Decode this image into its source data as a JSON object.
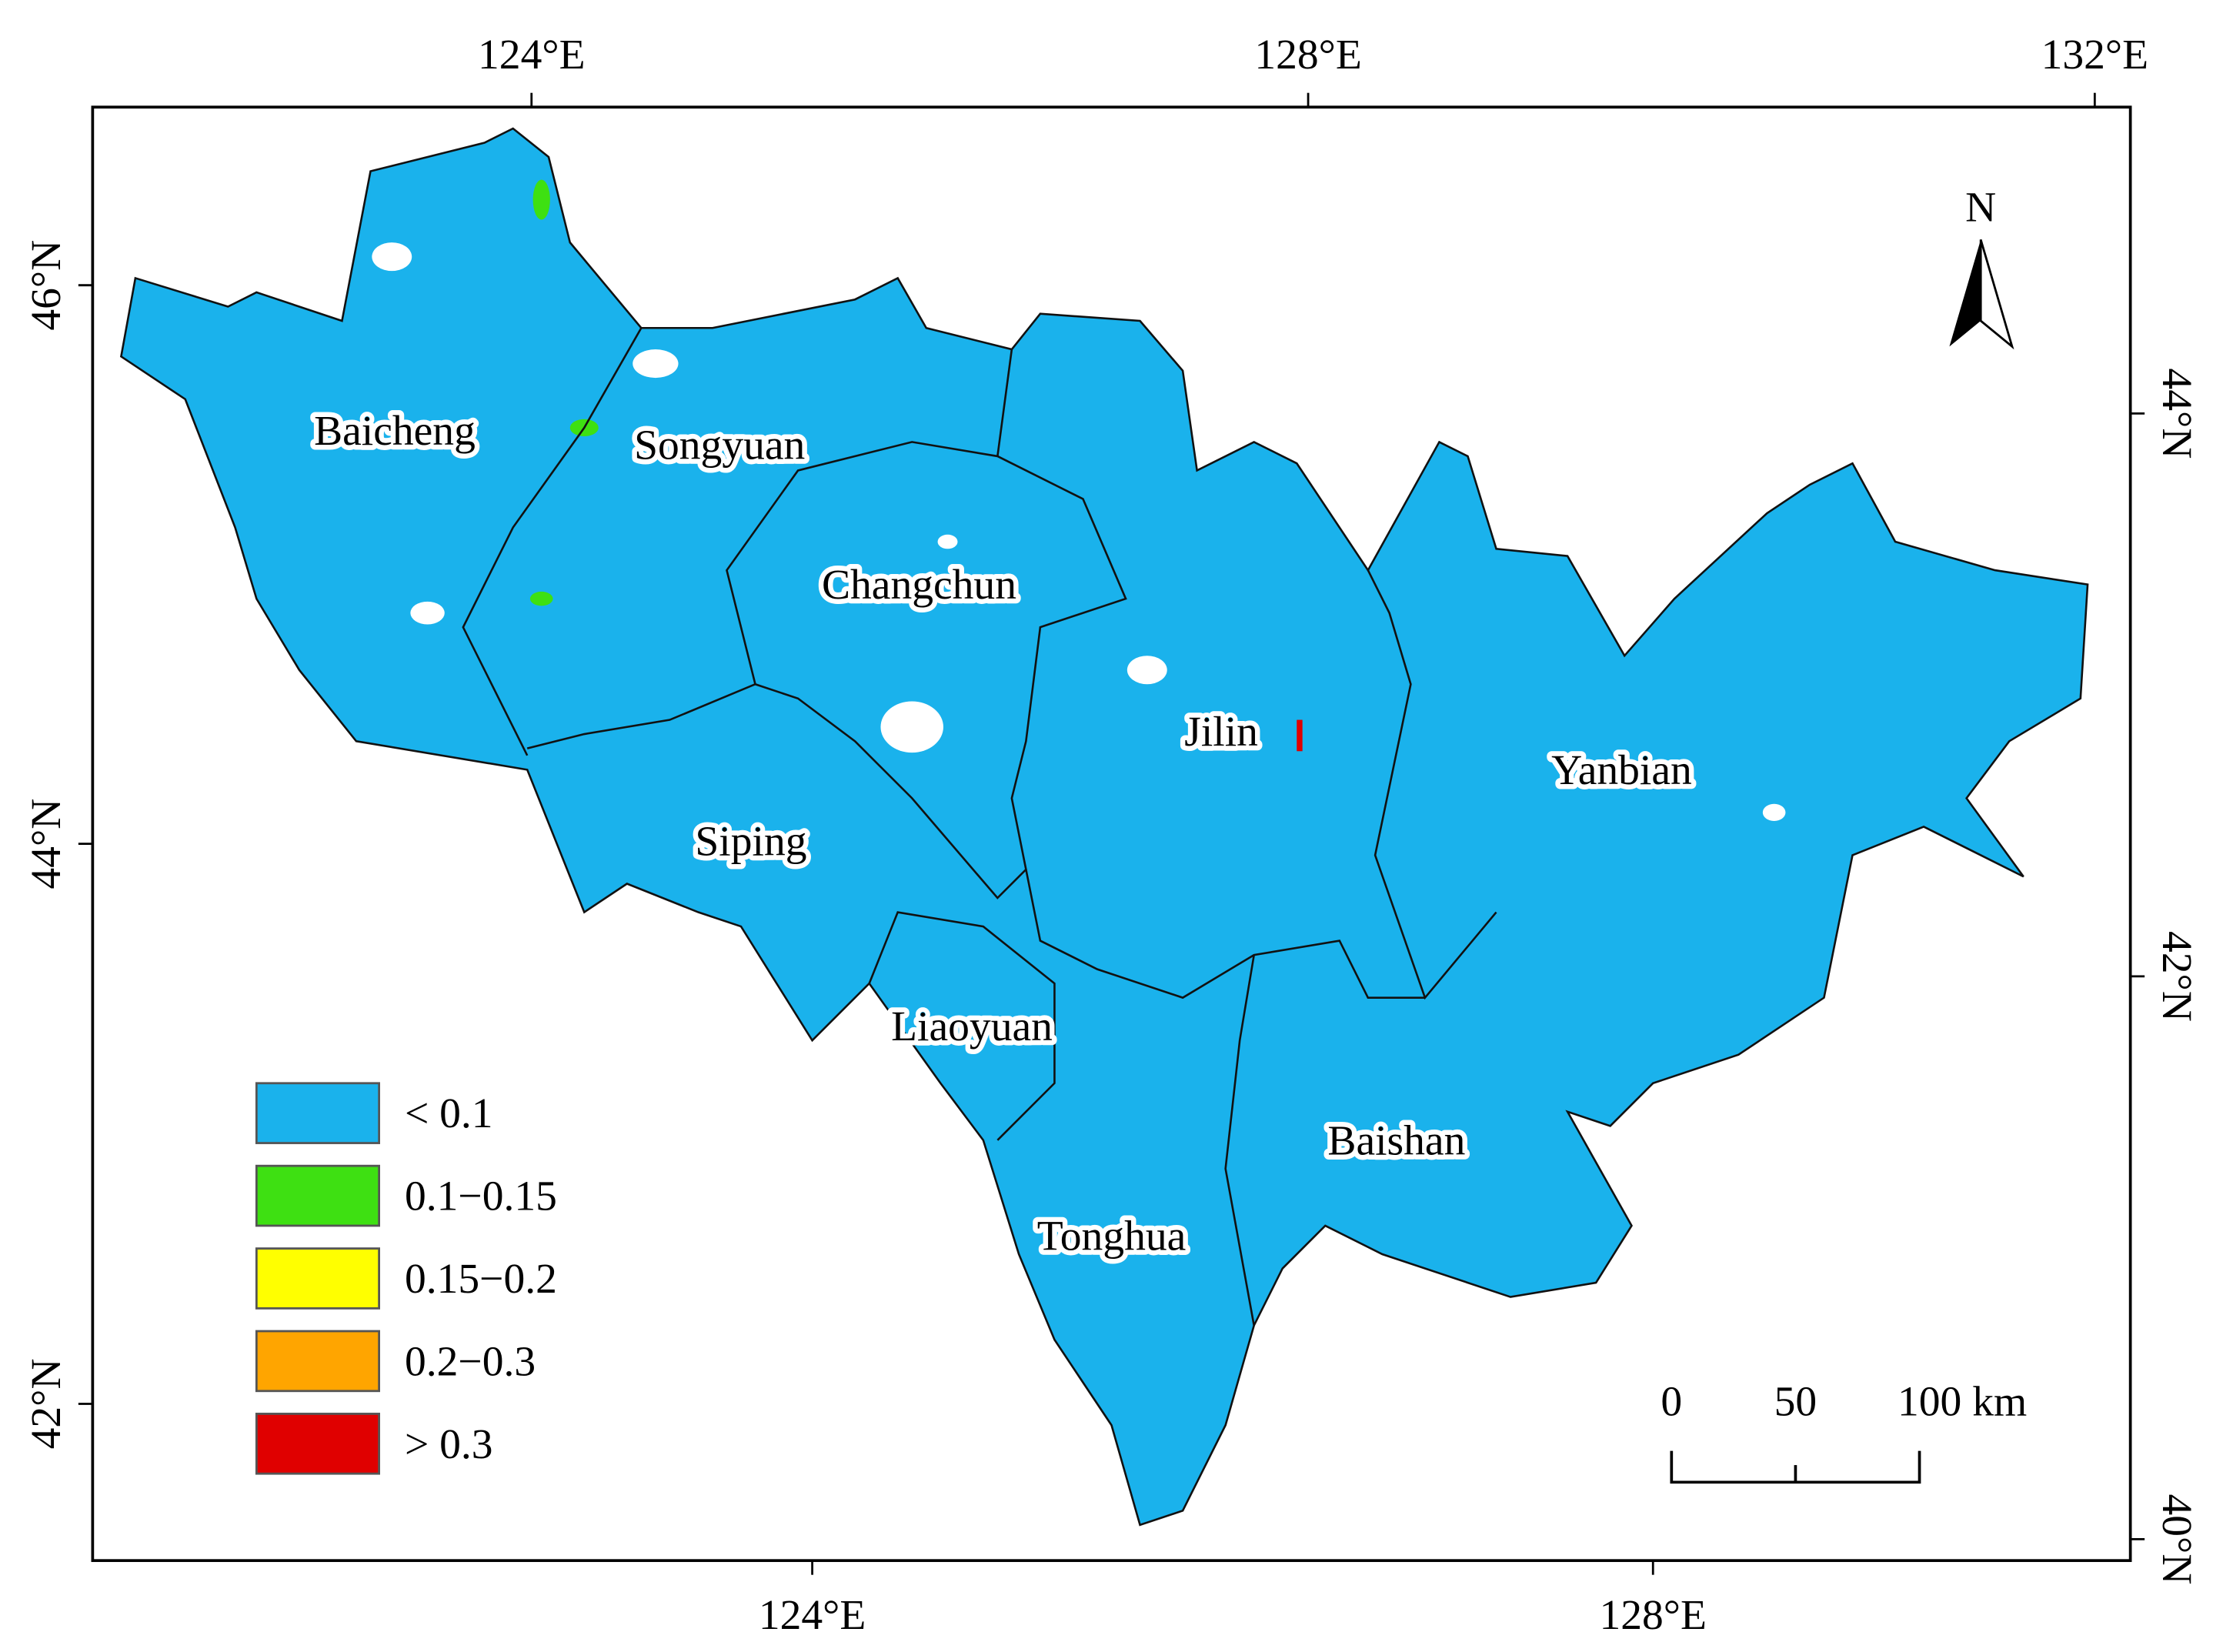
{
  "axes": {
    "top": [
      "124°E",
      "128°E",
      "132°E"
    ],
    "bottom": [
      "124°E",
      "128°E"
    ],
    "left": [
      "46°N",
      "44°N",
      "42°N"
    ],
    "right": [
      "44°N",
      "42°N",
      "40°N"
    ]
  },
  "regions": [
    "Baicheng",
    "Songyuan",
    "Changchun",
    "Jilin",
    "Yanbian",
    "Siping",
    "Liaoyuan",
    "Baishan",
    "Tonghua"
  ],
  "legend": {
    "items": [
      {
        "label": "< 0.1",
        "color": "#1ab2ec"
      },
      {
        "label": "0.1−0.15",
        "color": "#3ee012"
      },
      {
        "label": "0.15−0.2",
        "color": "#ffff00"
      },
      {
        "label": "0.2−0.3",
        "color": "#ffa500"
      },
      {
        "label": "> 0.3",
        "color": "#e00000"
      }
    ]
  },
  "north_arrow": "N",
  "scale_bar": [
    "0",
    "50",
    "100 km"
  ]
}
